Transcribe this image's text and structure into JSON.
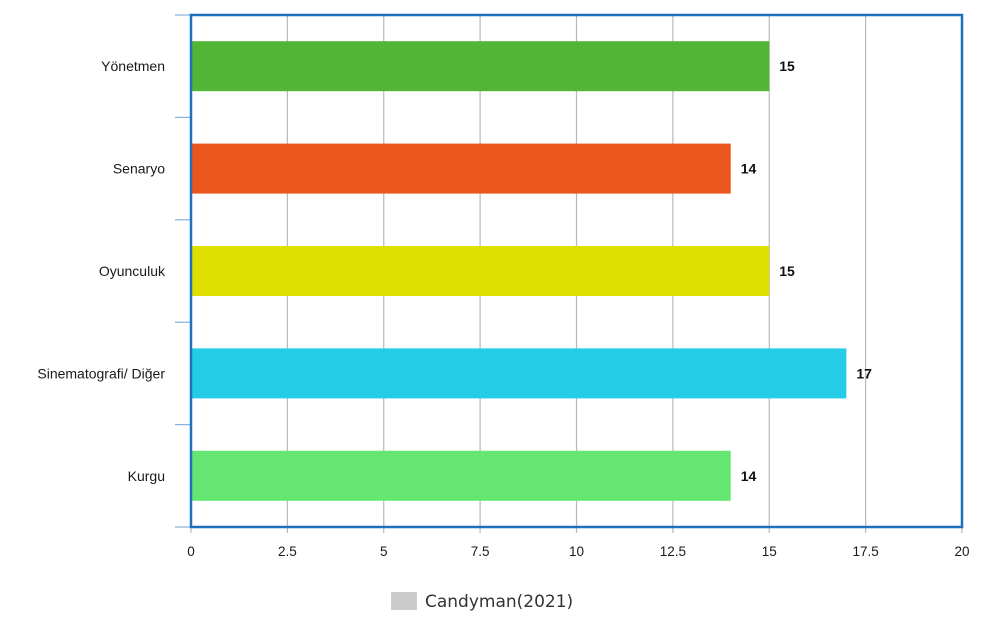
{
  "chart_data": {
    "type": "bar",
    "orientation": "horizontal",
    "categories": [
      "Yönetmen",
      "Senaryo",
      "Oyunculuk",
      "Sinematografi/ Diğer",
      "Kurgu"
    ],
    "values": [
      15,
      14,
      15,
      17,
      14
    ],
    "bar_colors": [
      "#52b535",
      "#eb561d",
      "#dde000",
      "#25cce6",
      "#65e672"
    ],
    "series": [
      {
        "name": "Candyman(2021)",
        "values": [
          15,
          14,
          15,
          17,
          14
        ]
      }
    ],
    "xlim": [
      0,
      20
    ],
    "x_ticks": [
      0,
      2.5,
      5,
      7.5,
      10,
      12.5,
      15,
      17.5,
      20
    ],
    "x_tick_labels": [
      "0",
      "2.5",
      "5",
      "7.5",
      "10",
      "12.5",
      "15",
      "17.5",
      "20"
    ],
    "grid": "vertical",
    "legend_position": "bottom-center",
    "legend_swatch_color": "#cccccc",
    "frame_color": "#1f6fbf",
    "grid_color": "#b8b8b8",
    "title": "",
    "xlabel": "",
    "ylabel": ""
  }
}
